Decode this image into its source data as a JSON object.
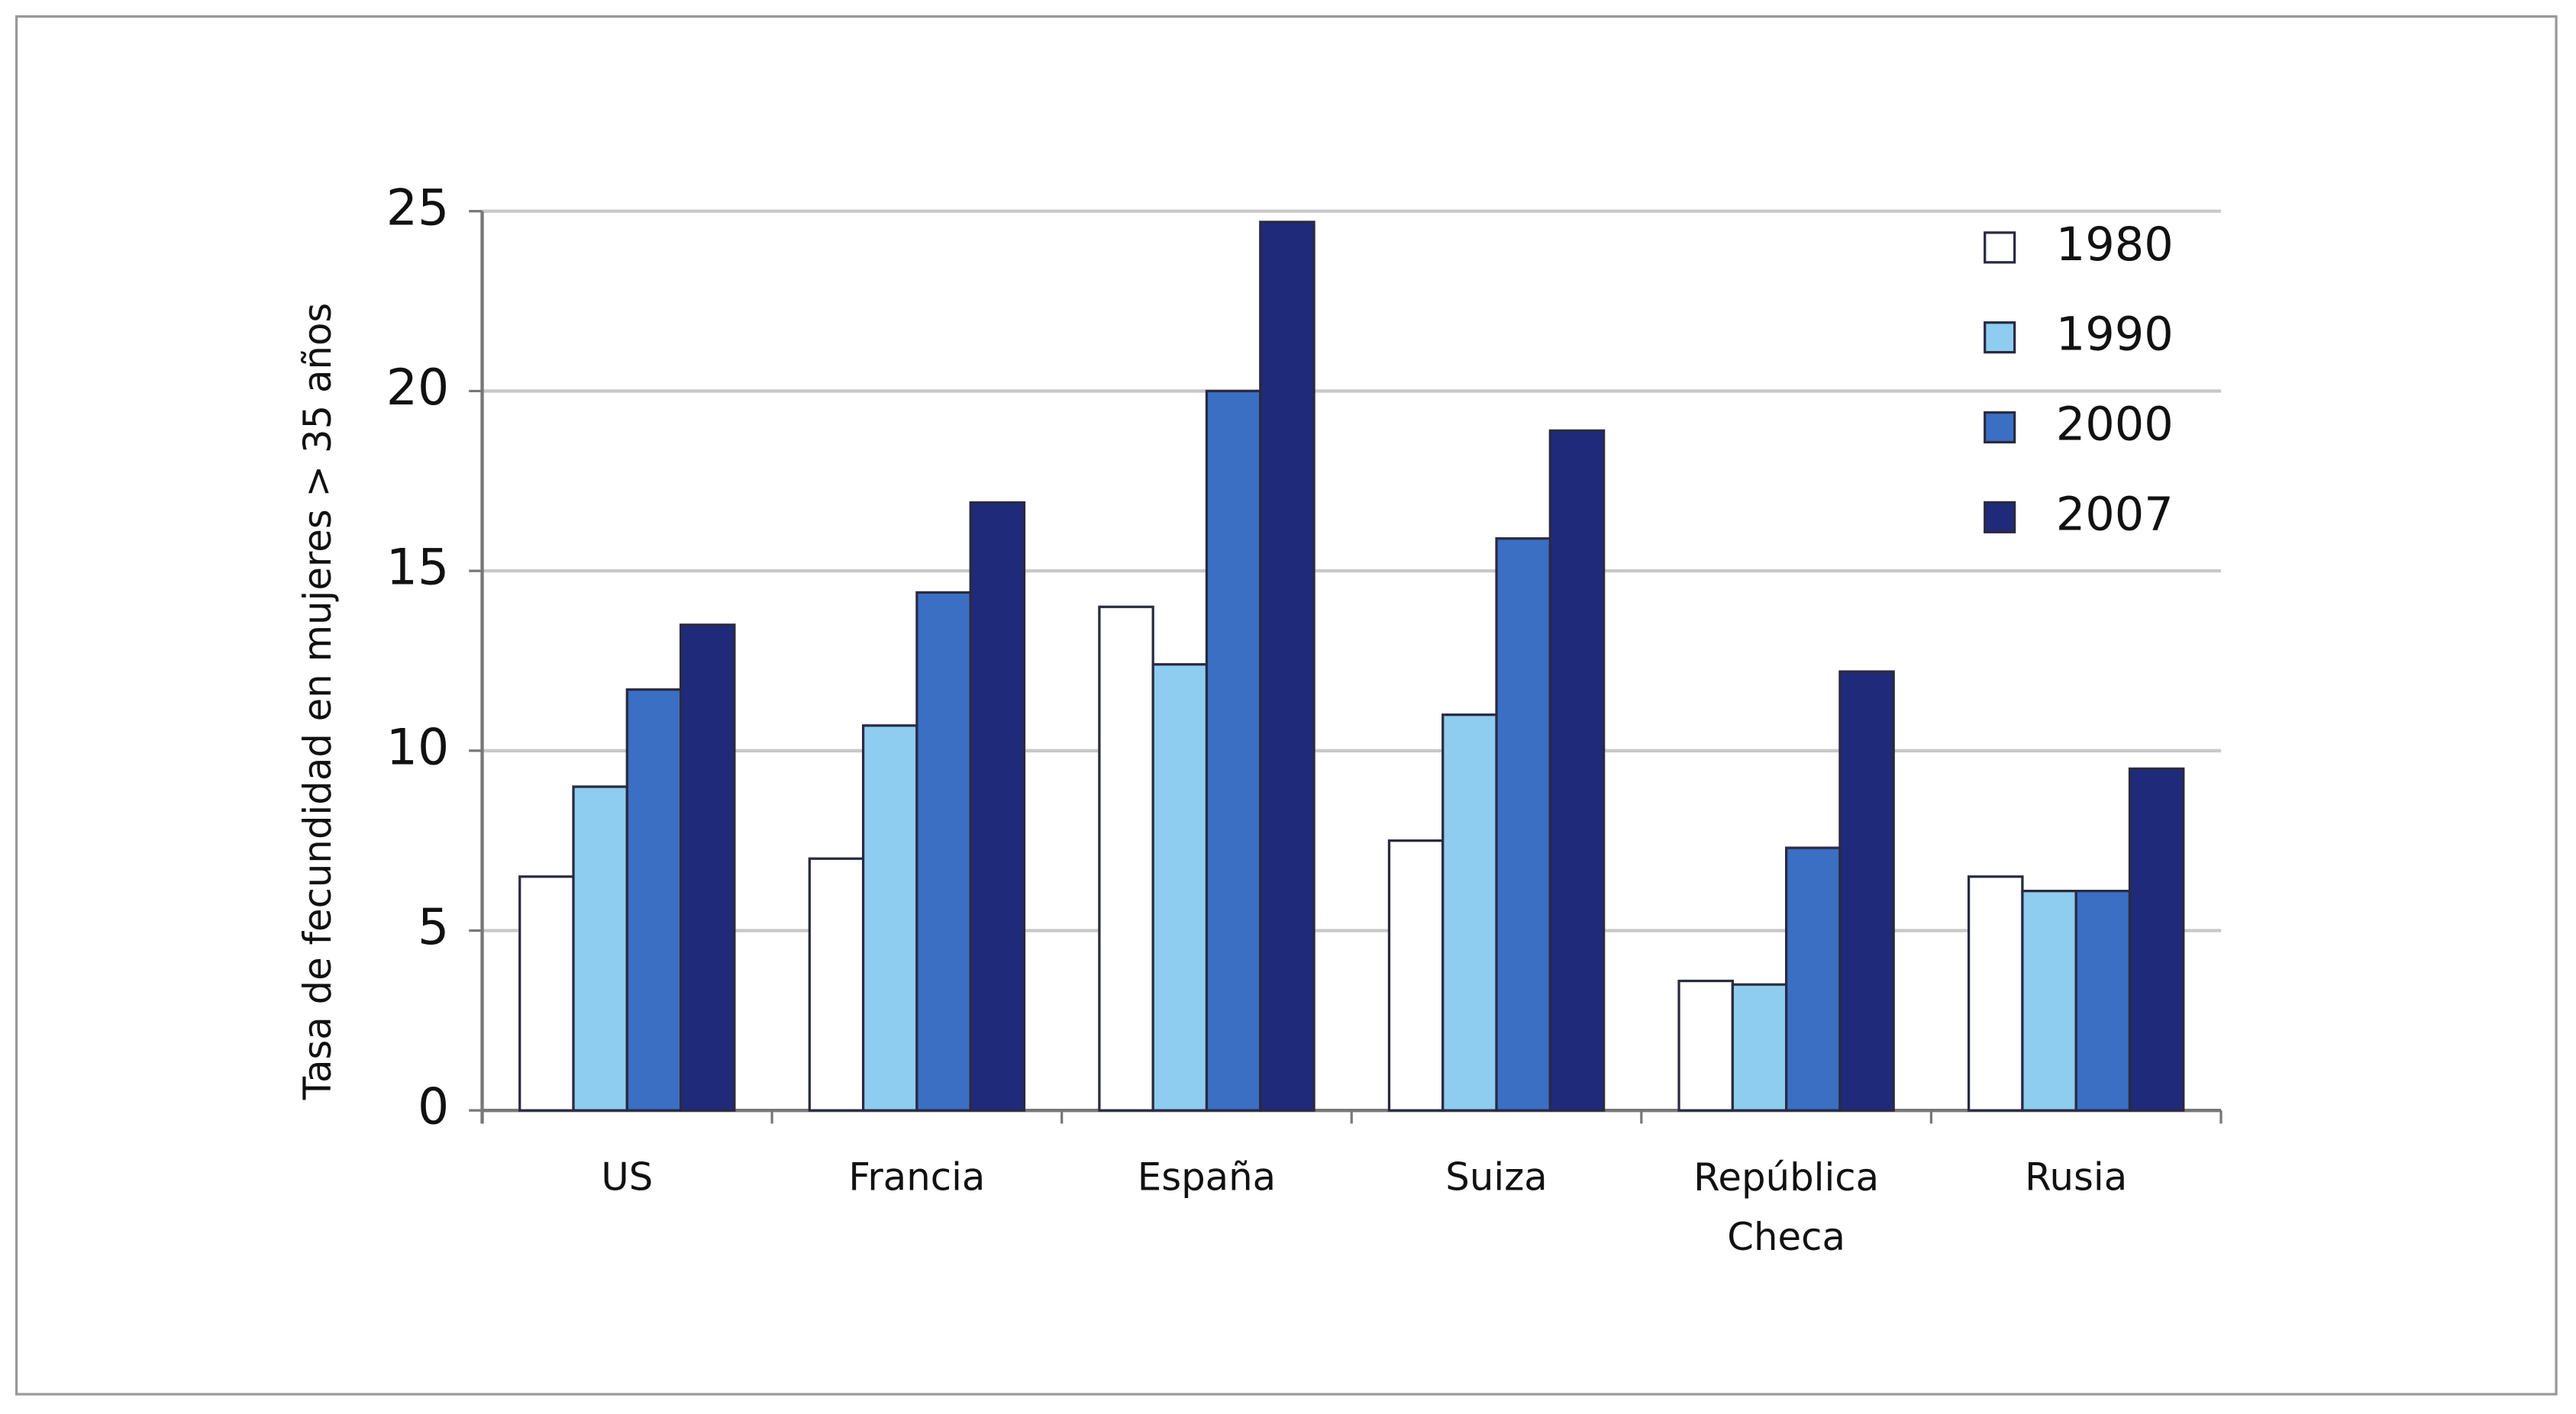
{
  "chart_data": {
    "type": "bar",
    "y_label": "Tasa de fecundidad en mujeres > 35 años",
    "categories": [
      "US",
      "Francia",
      "España",
      "Suiza",
      "República Checa",
      "Rusia"
    ],
    "series": [
      {
        "name": "1980",
        "color": "#ffffff",
        "values": [
          6.5,
          7,
          14,
          7.5,
          3.6,
          6.5
        ]
      },
      {
        "name": "1990",
        "color": "#8ecdf0",
        "values": [
          9,
          10.7,
          12.4,
          11,
          3.5,
          6.1
        ]
      },
      {
        "name": "2000",
        "color": "#3a6fc4",
        "values": [
          11.7,
          14.4,
          20,
          15.9,
          7.3,
          6.1
        ]
      },
      {
        "name": "2007",
        "color": "#1f2a7a",
        "values": [
          13.5,
          16.9,
          24.7,
          18.9,
          12.2,
          9.5
        ]
      }
    ],
    "ylim": [
      0,
      25
    ],
    "yticks": [
      0,
      5,
      10,
      15,
      20,
      25
    ],
    "grid": true,
    "legend": "upper right"
  }
}
